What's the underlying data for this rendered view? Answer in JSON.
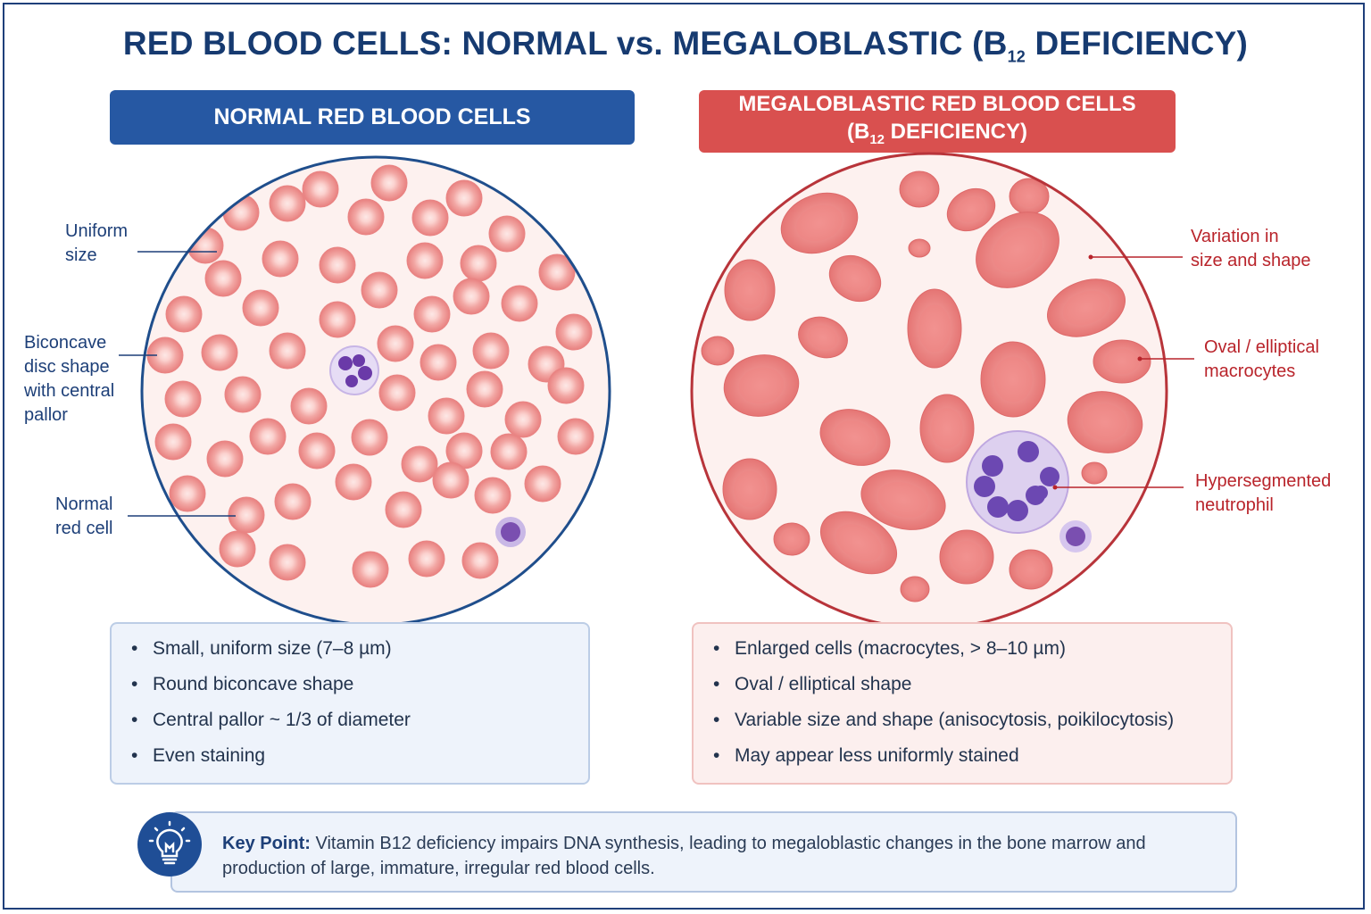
{
  "title": {
    "main": "RED BLOOD CELLS: NORMAL vs. MEGALOBLASTIC (B",
    "sub": "12",
    "end": " DEFICIENCY)"
  },
  "left": {
    "header": "NORMAL RED BLOOD CELLS",
    "labels": {
      "uniform": [
        "Uniform",
        "size"
      ],
      "biconcave": [
        "Biconcave",
        "disc shape",
        "with central",
        "pallor"
      ],
      "normal": [
        "Normal",
        "red cell"
      ]
    },
    "bullets": [
      "Small, uniform size (7–8 µm)",
      "Round biconcave shape",
      "Central pallor ~ 1/3 of diameter",
      "Even staining"
    ]
  },
  "right": {
    "header_line1": "MEGALOBLASTIC RED BLOOD CELLS",
    "header_line2_a": "(B",
    "header_line2_sub": "12",
    "header_line2_b": " DEFICIENCY)",
    "labels": {
      "variation": [
        "Variation in",
        "size and shape"
      ],
      "oval": [
        "Oval / elliptical",
        "macrocytes"
      ],
      "hyper": [
        "Hypersegmented",
        "neutrophil"
      ]
    },
    "bullets": [
      "Enlarged cells (macrocytes, > 8–10 µm)",
      "Oval / elliptical shape",
      "Variable size and shape (anisocytosis, poikilocytosis)",
      "May appear less uniformly stained"
    ]
  },
  "key_point": {
    "label": "Key Point:",
    "text": " Vitamin B12 deficiency impairs DNA synthesis, leading to megaloblastic changes in the bone marrow and production of large, immature, irregular red blood cells."
  },
  "colors": {
    "navy": "#163a70",
    "blue": "#2658a3",
    "red": "#d9504f",
    "cell": "#ef9a9a",
    "purple": "#7a4fb0"
  },
  "icons": [
    "lightbulb-icon"
  ]
}
